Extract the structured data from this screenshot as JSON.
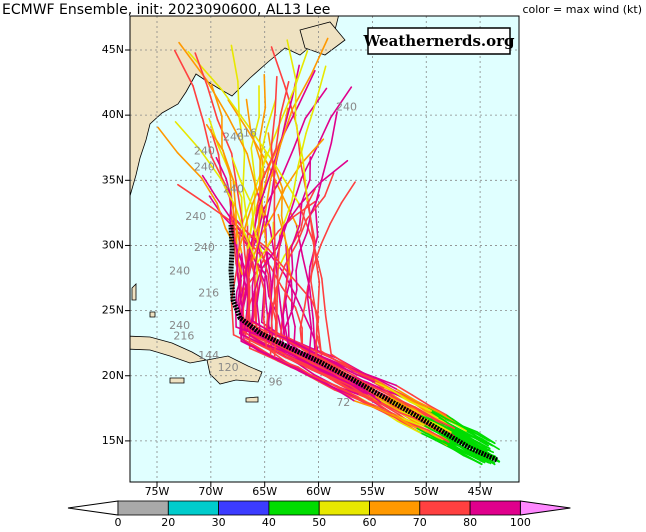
{
  "header": {
    "title": "ECMWF Ensemble, init: 2023090600, AL13 Lee",
    "note": "color = max wind (kt)"
  },
  "watermark": "Weathernerds.org",
  "map": {
    "lat_labels": [
      "45N",
      "40N",
      "35N",
      "30N",
      "25N",
      "20N",
      "15N"
    ],
    "lon_labels": [
      "75W",
      "70W",
      "65W",
      "60W",
      "55W",
      "50W",
      "45W"
    ]
  },
  "track_labels": [
    {
      "text": "240",
      "lon": 57.4,
      "lat": 40.6
    },
    {
      "text": "240",
      "lon": 67.9,
      "lat": 38.3
    },
    {
      "text": "216",
      "lon": 66.7,
      "lat": 38.6
    },
    {
      "text": "240",
      "lon": 70.6,
      "lat": 37.2
    },
    {
      "text": "240",
      "lon": 70.6,
      "lat": 36.0
    },
    {
      "text": "240",
      "lon": 67.9,
      "lat": 34.3
    },
    {
      "text": "240",
      "lon": 71.4,
      "lat": 32.2
    },
    {
      "text": "240",
      "lon": 70.6,
      "lat": 29.8
    },
    {
      "text": "240",
      "lon": 72.9,
      "lat": 28.0
    },
    {
      "text": "216",
      "lon": 70.2,
      "lat": 26.3
    },
    {
      "text": "240",
      "lon": 72.9,
      "lat": 23.8
    },
    {
      "text": "216",
      "lon": 72.5,
      "lat": 23.0
    },
    {
      "text": "144",
      "lon": 70.2,
      "lat": 21.5
    },
    {
      "text": "120",
      "lon": 68.4,
      "lat": 20.6
    },
    {
      "text": "96",
      "lon": 64.0,
      "lat": 19.5
    },
    {
      "text": "72",
      "lon": 57.7,
      "lat": 17.9
    }
  ],
  "colorbar": {
    "ticks": [
      0,
      20,
      30,
      40,
      50,
      60,
      70,
      80,
      100
    ],
    "colors": [
      "#a9a9a9",
      "#00cccc",
      "#3c3cff",
      "#00dd00",
      "#e8e800",
      "#ff9900",
      "#ff4040",
      "#e0008c"
    ],
    "low_color": "#ffffff",
    "high_color": "#ff88ff"
  }
}
